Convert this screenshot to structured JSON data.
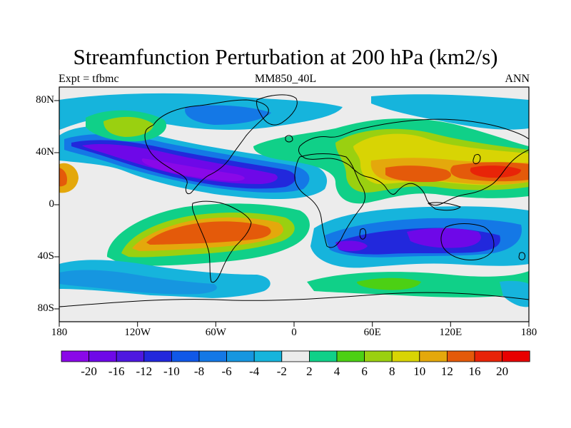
{
  "map": {
    "title": "Streamfunction Perturbation at 200 hPa (km2/s)",
    "left_label": "Expt = tfbmc",
    "center_label": "MM850_40L",
    "right_label": "ANN",
    "lat_ticks": [
      "80N",
      "40N",
      "0",
      "40S",
      "80S"
    ],
    "lon_ticks": [
      "180",
      "120W",
      "60W",
      "0",
      "60E",
      "120E",
      "180"
    ],
    "colorbar": {
      "levels": [
        "-20",
        "-16",
        "-12",
        "-10",
        "-8",
        "-6",
        "-4",
        "-2",
        "2",
        "4",
        "6",
        "8",
        "10",
        "12",
        "16",
        "20"
      ],
      "colors": [
        "#8a08e8",
        "#6e08e8",
        "#4e18e0",
        "#2228dc",
        "#1058e8",
        "#1478e6",
        "#1696e0",
        "#16b4dc",
        "#ececec",
        "#10d088",
        "#4cd014",
        "#9ad010",
        "#d8d404",
        "#e4a80c",
        "#e45a0a",
        "#e82408",
        "#e80000"
      ]
    }
  }
}
